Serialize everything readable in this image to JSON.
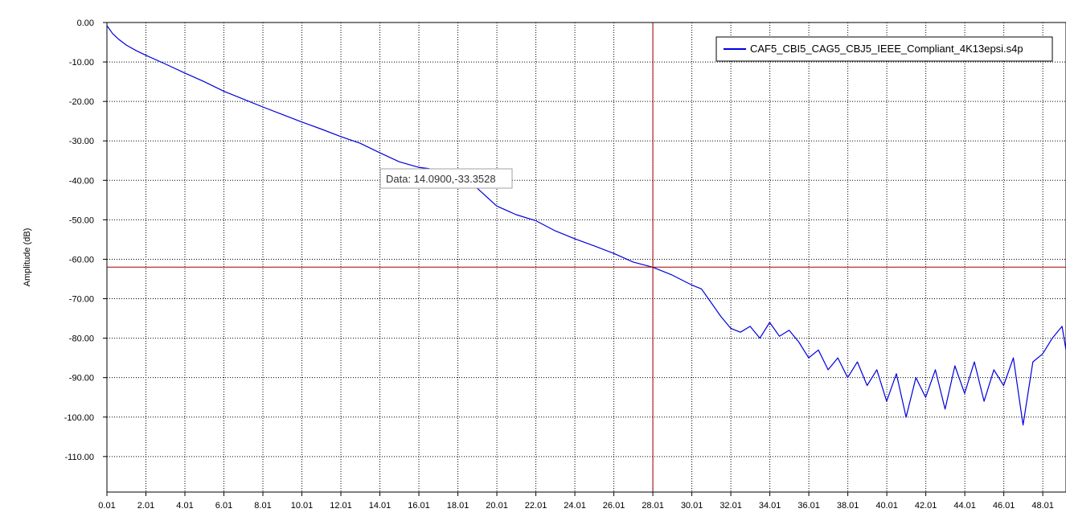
{
  "chart_data": {
    "type": "line",
    "title": "",
    "xlabel": "",
    "ylabel": "Amplitude (dB)",
    "xlim": [
      0.01,
      49.2
    ],
    "ylim": [
      -119,
      0
    ],
    "grid": true,
    "legend_position": "top-right",
    "x_ticks": [
      0.01,
      2.01,
      4.01,
      6.01,
      8.01,
      10.01,
      12.01,
      14.01,
      16.01,
      18.01,
      20.01,
      22.01,
      24.01,
      26.01,
      28.01,
      30.01,
      32.01,
      34.01,
      36.01,
      38.01,
      40.01,
      42.01,
      44.01,
      46.01,
      48.01
    ],
    "x_tick_labels": [
      "0.01",
      "2.01",
      "4.01",
      "6.01",
      "8.01",
      "10.01",
      "12.01",
      "14.01",
      "16.01",
      "18.01",
      "20.01",
      "22.01",
      "24.01",
      "26.01",
      "28.01",
      "30.01",
      "32.01",
      "34.01",
      "36.01",
      "38.01",
      "40.01",
      "42.01",
      "44.01",
      "46.01",
      "48.01"
    ],
    "y_ticks": [
      0,
      -10,
      -20,
      -30,
      -40,
      -50,
      -60,
      -70,
      -80,
      -90,
      -100,
      -110
    ],
    "y_tick_labels": [
      "0.00",
      "-10.00",
      "-20.00",
      "-30.00",
      "-40.00",
      "-50.00",
      "-60.00",
      "-70.00",
      "-80.00",
      "-90.00",
      "-100.00",
      "-110.00"
    ],
    "series": [
      {
        "name": "CAF5_CBI5_CAG5_CBJ5_IEEE_Compliant_4K13epsi.s4p",
        "color": "#0000dd",
        "x": [
          0.01,
          0.3,
          0.6,
          1.0,
          1.5,
          2.0,
          3.0,
          4.0,
          5.0,
          6.0,
          7.0,
          8.0,
          9.0,
          10.0,
          11.0,
          12.0,
          13.0,
          14.0,
          15.0,
          16.0,
          16.5,
          17.0,
          17.5,
          18.0,
          19.0,
          20.0,
          21.0,
          22.0,
          23.0,
          24.0,
          25.0,
          26.0,
          27.0,
          28.0,
          29.0,
          30.0,
          30.5,
          31.0,
          31.5,
          32.0,
          32.5,
          33.0,
          33.5,
          34.0,
          34.5,
          35.0,
          35.5,
          36.0,
          36.5,
          37.0,
          37.5,
          38.0,
          38.5,
          39.0,
          39.5,
          40.0,
          40.5,
          41.0,
          41.5,
          42.0,
          42.5,
          43.0,
          43.5,
          44.0,
          44.5,
          45.0,
          45.5,
          46.0,
          46.5,
          47.0,
          47.5,
          48.0,
          48.5,
          49.0,
          49.2
        ],
        "y": [
          -0.8,
          -2.8,
          -4.2,
          -5.7,
          -7.1,
          -8.3,
          -10.5,
          -12.8,
          -15.0,
          -17.4,
          -19.4,
          -21.4,
          -23.3,
          -25.2,
          -27.0,
          -28.9,
          -30.6,
          -33.0,
          -35.3,
          -36.7,
          -37.0,
          -37.6,
          -37.8,
          -38.2,
          -42.0,
          -46.5,
          -48.7,
          -50.2,
          -52.8,
          -54.8,
          -56.6,
          -58.5,
          -60.7,
          -62.0,
          -64.0,
          -66.5,
          -67.5,
          -71.0,
          -74.5,
          -77.5,
          -78.5,
          -77.0,
          -80.0,
          -76.0,
          -79.5,
          -78.0,
          -81.0,
          -85.0,
          -83.0,
          -88.0,
          -85.0,
          -90.0,
          -86.0,
          -92.0,
          -88.0,
          -96.0,
          -89.0,
          -100.0,
          -90.0,
          -95.0,
          -88.0,
          -98.0,
          -87.0,
          -94.0,
          -86.0,
          -96.0,
          -88.0,
          -92.0,
          -85.0,
          -102.0,
          -86.0,
          -84.0,
          -80.0,
          -77.0,
          -83.0
        ]
      }
    ],
    "cursor": {
      "x": 28.01,
      "y": -62.0
    },
    "tooltip_text": "Data: 14.0900,-33.3528"
  }
}
